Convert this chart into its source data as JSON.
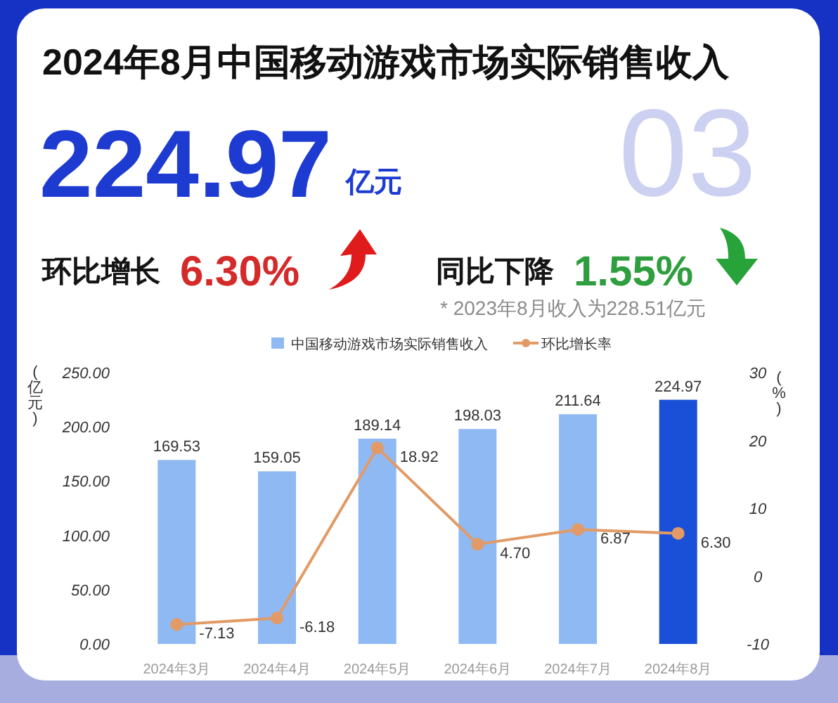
{
  "chart_data": {
    "type": "bar",
    "title": "2024年8月中国移动游戏市场实际销售收入",
    "categories": [
      "2024年3月",
      "2024年4月",
      "2024年5月",
      "2024年6月",
      "2024年7月",
      "2024年8月"
    ],
    "series": [
      {
        "name": "中国移动游戏市场实际销售收入",
        "type": "bar",
        "color": "#8fb9f3",
        "colors": [
          "#8fb9f3",
          "#8fb9f3",
          "#8fb9f3",
          "#8fb9f3",
          "#8fb9f3",
          "#1a4fd8"
        ],
        "values": [
          169.53,
          159.05,
          189.14,
          198.03,
          211.64,
          224.97
        ],
        "value_labels": [
          "169.53",
          "159.05",
          "189.14",
          "198.03",
          "211.64",
          "224.97"
        ]
      },
      {
        "name": "环比增长率",
        "type": "line",
        "axis": "y2",
        "color": "#e29a66",
        "marker": "circle",
        "values": [
          -7.13,
          -6.18,
          18.92,
          4.7,
          6.87,
          6.3
        ],
        "value_labels": [
          "-7.13",
          "-6.18",
          "18.92",
          "4.70",
          "6.87",
          "6.30"
        ]
      }
    ],
    "ylabel": "(亿元)",
    "y2label": "(%)",
    "ylim": [
      0,
      250
    ],
    "yticks": [
      {
        "value": 0,
        "label": "0.00"
      },
      {
        "value": 50,
        "label": "50.00"
      },
      {
        "value": 100,
        "label": "100.00"
      },
      {
        "value": 150,
        "label": "150.00"
      },
      {
        "value": 200,
        "label": "200.00"
      },
      {
        "value": 250,
        "label": "250.00"
      }
    ],
    "y2lim": [
      -10,
      30
    ],
    "y2ticks": [
      -10,
      0,
      10,
      20,
      30
    ],
    "legend": "top",
    "annotations": [
      "224.97",
      "亿元",
      "环比增长",
      "6.30%",
      "同比下降",
      "1.55%",
      "* 2023年8月收入为228.51亿元",
      "03"
    ]
  }
}
